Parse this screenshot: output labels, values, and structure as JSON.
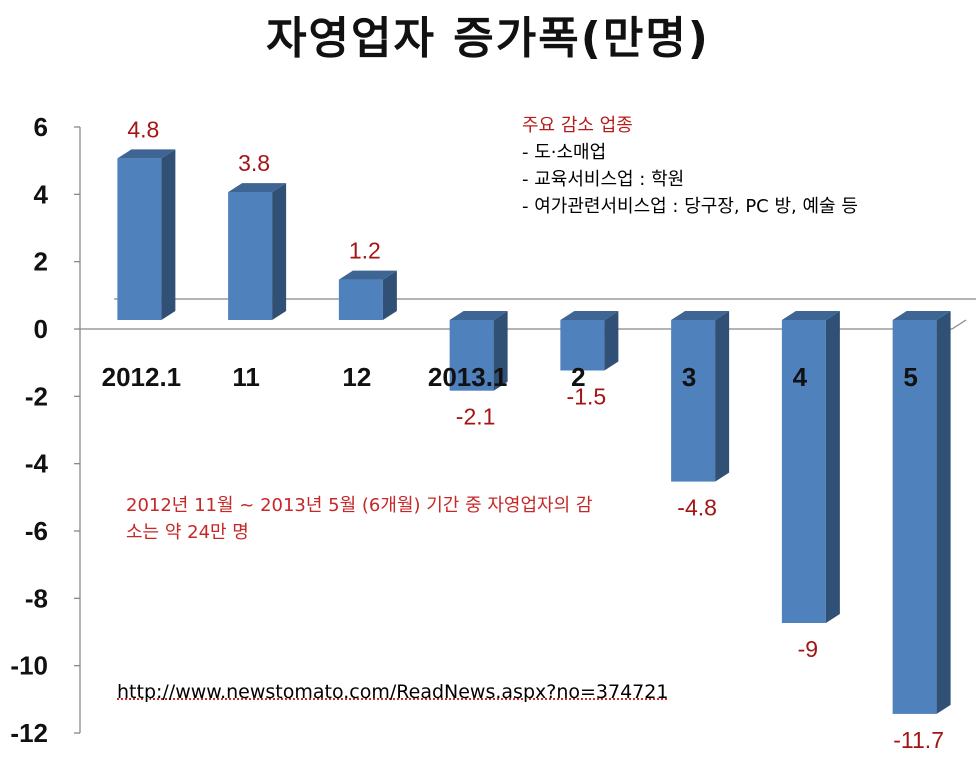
{
  "title": "자영업자 증가폭(만명)",
  "chart_data": {
    "type": "bar",
    "categories": [
      "2012.1",
      "11",
      "12",
      "2013.1",
      "2",
      "3",
      "4",
      "5"
    ],
    "values": [
      4.8,
      3.8,
      1.2,
      -2.1,
      -1.5,
      -4.8,
      -9,
      -11.7
    ],
    "value_labels": [
      "4.8",
      "3.8",
      "1.2",
      "-2.1",
      "-1.5",
      "-4.8",
      "-9",
      "-11.7"
    ],
    "yticks": [
      "6",
      "4",
      "2",
      "0",
      "-2",
      "-4",
      "-6",
      "-8",
      "-10",
      "-12"
    ],
    "ylim": [
      -12,
      6
    ],
    "grid": false,
    "bar_color": "#4f81bd",
    "label_color": "#a31515"
  },
  "notes": {
    "industries": {
      "title": "주요 감소 업종",
      "items": [
        "- 도·소매업",
        "- 교육서비스업 : 학원",
        "- 여가관련서비스업 : 당구장, PC 방, 예술 등"
      ]
    },
    "period": "2012년 11월 ~ 2013년 5월 (6개월) 기간 중 자영업자의 감소는 약 24만 명",
    "source_url": "http://www.newstomato.com/ReadNews.aspx?no=374721"
  }
}
